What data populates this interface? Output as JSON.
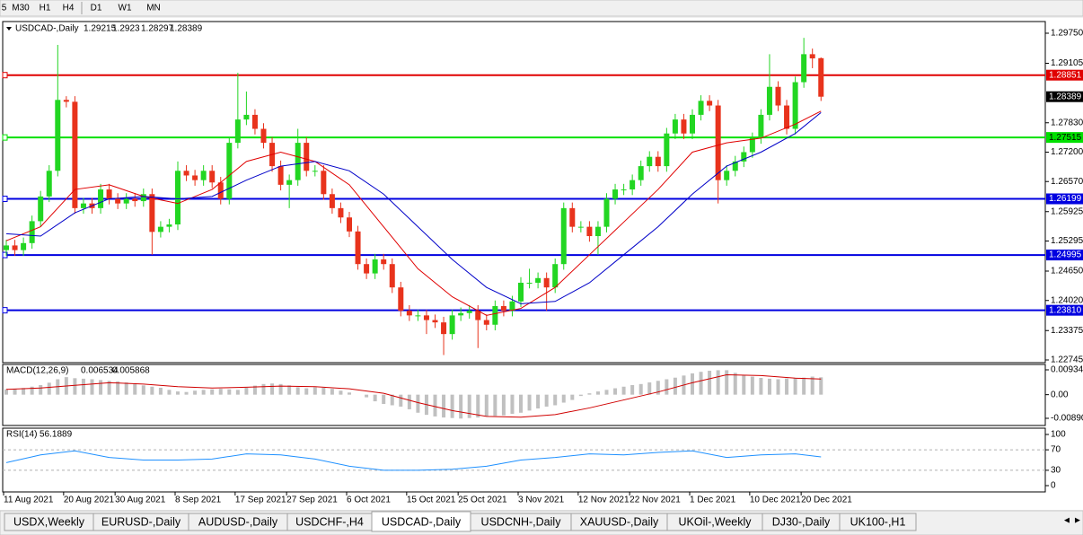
{
  "toolbar": {
    "timeframes": [
      "5",
      "M30",
      "H1",
      "H4",
      "D1",
      "W1",
      "MN"
    ]
  },
  "chart_data": [
    {
      "type": "candlestick",
      "title": "USDCAD-,Daily",
      "up_color": "#22d622",
      "down_color": "#e8331c",
      "ylim": [
        1.22687,
        1.3
      ],
      "yticks": [
        {
          "value": 1.2975,
          "label": "1.29750"
        },
        1.29105,
        {
          "value": 1.2783,
          "label": "1.27830"
        },
        {
          "value": 1.272,
          "label": "1.27200"
        },
        {
          "value": 1.2657,
          "label": "1.26570"
        },
        1.25925,
        1.25295,
        {
          "value": 1.2465,
          "label": "1.24650"
        },
        {
          "value": 1.2402,
          "label": "1.24020"
        },
        1.23375,
        1.22745
      ],
      "hlines": [
        {
          "value": 1.28851,
          "color": "#e00000"
        },
        {
          "value": 1.27515,
          "color": "#00e000"
        },
        {
          "value": 1.26199,
          "color": "#0000e0"
        },
        {
          "value": 1.24995,
          "color": "#0000e0"
        },
        {
          "value": 1.2381,
          "label": "1.23810",
          "color": "#0000e0"
        }
      ],
      "categories": [
        "11 Aug 2021",
        null,
        null,
        null,
        null,
        null,
        null,
        "20 Aug 2021",
        null,
        null,
        null,
        null,
        null,
        "30 Aug 2021",
        null,
        null,
        null,
        null,
        null,
        null,
        "8 Sep 2021",
        null,
        null,
        null,
        null,
        null,
        null,
        "17 Sep 2021",
        null,
        null,
        null,
        null,
        null,
        "27 Sep 2021",
        null,
        null,
        null,
        null,
        null,
        null,
        "6 Oct 2021",
        null,
        null,
        null,
        null,
        null,
        null,
        "15 Oct 2021",
        null,
        null,
        null,
        null,
        null,
        "25 Oct 2021",
        null,
        null,
        null,
        null,
        null,
        null,
        "3 Nov 2021",
        null,
        null,
        null,
        null,
        null,
        null,
        "12 Nov 2021",
        null,
        null,
        null,
        null,
        null,
        "22 Nov 2021",
        null,
        null,
        null,
        null,
        null,
        null,
        "1 Dec 2021",
        null,
        null,
        null,
        null,
        null,
        null,
        "10 Dec 2021",
        null,
        null,
        null,
        null,
        null,
        "20 Dec 2021",
        null,
        null
      ],
      "ohlc": [
        [
          1.251,
          1.2532,
          1.2498,
          1.252
        ],
        [
          1.252,
          1.2532,
          1.2498,
          1.251
        ],
        [
          1.251,
          1.2537,
          1.2498,
          1.2525
        ],
        [
          1.2525,
          1.2584,
          1.2513,
          1.2572
        ],
        [
          1.2572,
          1.2637,
          1.256,
          1.2625
        ],
        [
          1.2625,
          1.2692,
          1.2613,
          1.268
        ],
        [
          1.268,
          1.295,
          1.2668,
          1.2832
        ],
        [
          1.2832,
          1.284,
          1.2816,
          1.2828
        ],
        [
          1.2828,
          1.284,
          1.2588,
          1.26
        ],
        [
          1.26,
          1.2622,
          1.2588,
          1.261
        ],
        [
          1.261,
          1.2622,
          1.2588,
          1.26
        ],
        [
          1.26,
          1.2652,
          1.2588,
          1.264
        ],
        [
          1.264,
          1.2652,
          1.2608,
          1.262
        ],
        [
          1.262,
          1.2632,
          1.2598,
          1.261
        ],
        [
          1.261,
          1.2632,
          1.2598,
          1.262
        ],
        [
          1.262,
          1.2632,
          1.2603,
          1.2615
        ],
        [
          1.2615,
          1.2642,
          1.2603,
          1.263
        ],
        [
          1.263,
          1.2642,
          1.25,
          1.2549
        ],
        [
          1.2549,
          1.2572,
          1.2537,
          1.256
        ],
        [
          1.256,
          1.2577,
          1.2548,
          1.2565
        ],
        [
          1.2565,
          1.27,
          1.2553,
          1.268
        ],
        [
          1.268,
          1.2692,
          1.2658,
          1.267
        ],
        [
          1.267,
          1.2682,
          1.2648,
          1.266
        ],
        [
          1.266,
          1.2692,
          1.2648,
          1.268
        ],
        [
          1.268,
          1.2692,
          1.2643,
          1.2655
        ],
        [
          1.2655,
          1.2667,
          1.2608,
          1.262
        ],
        [
          1.262,
          1.2752,
          1.2608,
          1.274
        ],
        [
          1.274,
          1.289,
          1.2728,
          1.279
        ],
        [
          1.279,
          1.285,
          1.2778,
          1.28
        ],
        [
          1.28,
          1.2812,
          1.2758,
          1.277
        ],
        [
          1.277,
          1.2782,
          1.2728,
          1.274
        ],
        [
          1.274,
          1.2752,
          1.2678,
          1.269
        ],
        [
          1.269,
          1.2702,
          1.2638,
          1.265
        ],
        [
          1.265,
          1.2672,
          1.26,
          1.266
        ],
        [
          1.266,
          1.277,
          1.2648,
          1.274
        ],
        [
          1.274,
          1.2752,
          1.2668,
          1.268
        ],
        [
          1.268,
          1.2692,
          1.2668,
          1.268
        ],
        [
          1.268,
          1.2692,
          1.2618,
          1.263
        ],
        [
          1.263,
          1.2642,
          1.2588,
          1.26
        ],
        [
          1.26,
          1.2612,
          1.2568,
          1.258
        ],
        [
          1.258,
          1.2592,
          1.2538,
          1.255
        ],
        [
          1.255,
          1.2562,
          1.2468,
          1.248
        ],
        [
          1.248,
          1.2492,
          1.2448,
          1.246
        ],
        [
          1.246,
          1.2502,
          1.2448,
          1.249
        ],
        [
          1.249,
          1.2502,
          1.2468,
          1.248
        ],
        [
          1.248,
          1.2492,
          1.2418,
          1.243
        ],
        [
          1.243,
          1.2442,
          1.2368,
          1.238
        ],
        [
          1.238,
          1.2392,
          1.2358,
          1.237
        ],
        [
          1.237,
          1.2382,
          1.2358,
          1.237
        ],
        [
          1.237,
          1.2382,
          1.233,
          1.236
        ],
        [
          1.236,
          1.2372,
          1.2343,
          1.2355
        ],
        [
          1.2355,
          1.2367,
          1.2285,
          1.233
        ],
        [
          1.233,
          1.2382,
          1.2318,
          1.237
        ],
        [
          1.237,
          1.2387,
          1.2358,
          1.2375
        ],
        [
          1.2375,
          1.2392,
          1.2363,
          1.238
        ],
        [
          1.238,
          1.2392,
          1.23,
          1.236
        ],
        [
          1.236,
          1.2372,
          1.2338,
          1.235
        ],
        [
          1.235,
          1.2402,
          1.2338,
          1.239
        ],
        [
          1.239,
          1.2402,
          1.2368,
          1.238
        ],
        [
          1.238,
          1.2412,
          1.2368,
          1.24
        ],
        [
          1.24,
          1.2452,
          1.2388,
          1.244
        ],
        [
          1.244,
          1.247,
          1.2428,
          1.244
        ],
        [
          1.244,
          1.2462,
          1.2428,
          1.245
        ],
        [
          1.245,
          1.2462,
          1.238,
          1.243
        ],
        [
          1.243,
          1.2492,
          1.2418,
          1.248
        ],
        [
          1.248,
          1.2612,
          1.2468,
          1.26
        ],
        [
          1.26,
          1.2612,
          1.2548,
          1.256
        ],
        [
          1.256,
          1.2572,
          1.2548,
          1.256
        ],
        [
          1.256,
          1.2572,
          1.2528,
          1.254
        ],
        [
          1.254,
          1.2572,
          1.25,
          1.256
        ],
        [
          1.256,
          1.2632,
          1.2548,
          1.262
        ],
        [
          1.262,
          1.2652,
          1.2608,
          1.264
        ],
        [
          1.264,
          1.2652,
          1.2628,
          1.264
        ],
        [
          1.264,
          1.2672,
          1.2628,
          1.266
        ],
        [
          1.266,
          1.2702,
          1.2648,
          1.269
        ],
        [
          1.269,
          1.2722,
          1.2678,
          1.271
        ],
        [
          1.271,
          1.2722,
          1.2678,
          1.269
        ],
        [
          1.269,
          1.2772,
          1.2678,
          1.276
        ],
        [
          1.276,
          1.2802,
          1.2748,
          1.279
        ],
        [
          1.279,
          1.2802,
          1.2748,
          1.276
        ],
        [
          1.276,
          1.2812,
          1.2748,
          1.28
        ],
        [
          1.28,
          1.2842,
          1.2788,
          1.283
        ],
        [
          1.283,
          1.2842,
          1.2808,
          1.282
        ],
        [
          1.282,
          1.2832,
          1.261,
          1.266
        ],
        [
          1.266,
          1.2692,
          1.2648,
          1.268
        ],
        [
          1.268,
          1.2712,
          1.2668,
          1.27
        ],
        [
          1.27,
          1.2732,
          1.2688,
          1.272
        ],
        [
          1.272,
          1.2762,
          1.2708,
          1.275
        ],
        [
          1.275,
          1.2812,
          1.2738,
          1.28
        ],
        [
          1.28,
          1.293,
          1.2788,
          1.286
        ],
        [
          1.286,
          1.2872,
          1.2808,
          1.282
        ],
        [
          1.282,
          1.2832,
          1.2758,
          1.277
        ],
        [
          1.277,
          1.2882,
          1.2758,
          1.287
        ],
        [
          1.287,
          1.2965,
          1.2858,
          1.293
        ],
        [
          1.293,
          1.2942,
          1.29,
          1.2921
        ],
        [
          1.29215,
          1.2923,
          1.28297,
          1.28389
        ]
      ],
      "lines": [
        {
          "color": "#e00000",
          "x": [
            0,
            4,
            8,
            12,
            16,
            20,
            24,
            28,
            32,
            36,
            40,
            44,
            48,
            52,
            56,
            60,
            64,
            68,
            72,
            76,
            80,
            84,
            88,
            92,
            95
          ],
          "values": [
            1.253,
            1.256,
            1.264,
            1.265,
            1.2625,
            1.261,
            1.264,
            1.27,
            1.272,
            1.27,
            1.265,
            1.256,
            1.247,
            1.241,
            1.237,
            1.2385,
            1.243,
            1.25,
            1.257,
            1.264,
            1.272,
            1.274,
            1.275,
            1.278,
            1.2808
          ]
        },
        {
          "color": "#0000c8",
          "x": [
            0,
            4,
            8,
            12,
            16,
            20,
            24,
            28,
            32,
            36,
            40,
            44,
            48,
            52,
            56,
            60,
            64,
            68,
            72,
            76,
            80,
            84,
            88,
            92,
            95
          ],
          "values": [
            1.2545,
            1.254,
            1.259,
            1.262,
            1.2625,
            1.262,
            1.2625,
            1.266,
            1.269,
            1.27,
            1.268,
            1.263,
            1.256,
            1.249,
            1.243,
            1.2395,
            1.24,
            1.244,
            1.25,
            1.256,
            1.263,
            1.269,
            1.272,
            1.276,
            1.2805
          ]
        }
      ]
    },
    {
      "type": "macd",
      "title": "MACD(12,26,9)",
      "bar_color": "#c0c0c0",
      "ylim": [
        -0.011609,
        0.011373
      ],
      "yticks": [
        0.009345,
        {
          "value": 0,
          "label": "0.00"
        },
        {
          "value": -0.008905,
          "label": "-0.00890"
        }
      ],
      "histogram": [
        0.002,
        0.0022,
        0.0025,
        0.003,
        0.0036,
        0.0045,
        0.0058,
        0.0066,
        0.0062,
        0.006,
        0.0058,
        0.0055,
        0.0052,
        0.005,
        0.0046,
        0.004,
        0.0035,
        0.003,
        0.0026,
        0.0018,
        0.0012,
        0.001,
        0.0015,
        0.0018,
        0.002,
        0.0022,
        0.002,
        0.0018,
        0.0026,
        0.0034,
        0.004,
        0.0042,
        0.004,
        0.0035,
        0.0028,
        0.0024,
        0.0028,
        0.0026,
        0.0022,
        0.0015,
        0.0008,
        0.0,
        -0.001,
        -0.0025,
        -0.0035,
        -0.004,
        -0.0045,
        -0.0055,
        -0.0068,
        -0.0076,
        -0.0082,
        -0.0086,
        -0.0088,
        -0.009,
        -0.0088,
        -0.0086,
        -0.0082,
        -0.008,
        -0.0078,
        -0.0072,
        -0.0068,
        -0.006,
        -0.0052,
        -0.0045,
        -0.004,
        -0.003,
        -0.002,
        -0.0005,
        0.0005,
        0.0012,
        0.0018,
        0.0024,
        0.003,
        0.0036,
        0.004,
        0.0046,
        0.0052,
        0.0058,
        0.0064,
        0.0072,
        0.008,
        0.0086,
        0.009,
        0.0092,
        0.0092,
        0.0082,
        0.0074,
        0.0068,
        0.0063,
        0.006,
        0.0058,
        0.0061,
        0.0062,
        0.0064,
        0.0068,
        0.006534
      ],
      "signal": {
        "color": "#d00000",
        "x": [
          0,
          4,
          8,
          12,
          16,
          20,
          24,
          28,
          32,
          36,
          40,
          44,
          48,
          52,
          56,
          60,
          64,
          68,
          72,
          76,
          80,
          84,
          88,
          92,
          95
        ],
        "values": [
          0.002,
          0.0025,
          0.0035,
          0.0045,
          0.004,
          0.003,
          0.0025,
          0.0028,
          0.0032,
          0.003,
          0.0022,
          0.0005,
          -0.003,
          -0.006,
          -0.0082,
          -0.0085,
          -0.0075,
          -0.005,
          -0.002,
          0.001,
          0.0045,
          0.0075,
          0.0072,
          0.0062,
          0.005868
        ]
      }
    },
    {
      "type": "line",
      "title": "RSI(14)",
      "color": "#1e90ff",
      "ylim": [
        -12.3,
        112.3
      ],
      "yticks": [
        100,
        70,
        30,
        0
      ],
      "levels": [
        70,
        30
      ],
      "x": [
        0,
        4,
        8,
        12,
        16,
        20,
        24,
        28,
        32,
        36,
        40,
        44,
        48,
        52,
        56,
        60,
        64,
        68,
        72,
        76,
        80,
        84,
        88,
        92,
        95
      ],
      "values": [
        45,
        60,
        68,
        55,
        50,
        50,
        52,
        62,
        60,
        52,
        38,
        30,
        30,
        32,
        38,
        50,
        55,
        62,
        60,
        65,
        68,
        55,
        60,
        62,
        56.1889
      ]
    }
  ],
  "tabs": {
    "items": [
      "USDX,Weekly",
      "EURUSD-,Daily",
      "AUDUSD-,Daily",
      "USDCHF-,H4",
      "USDCAD-,Daily",
      "USDCNH-,Daily",
      "XAUUSD-,Daily",
      "UKOil-,Weekly",
      "DJ30-,Daily",
      "UK100-,H1"
    ],
    "active": 4
  }
}
